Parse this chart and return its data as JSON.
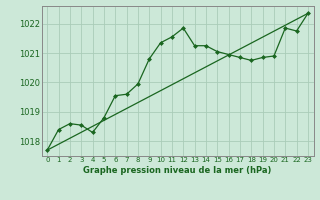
{
  "title": "Graphe pression niveau de la mer (hPa)",
  "bg_color": "#cce8d8",
  "grid_color": "#aaccb8",
  "line_color": "#1a6620",
  "spine_color": "#888888",
  "y_ticks": [
    1018,
    1019,
    1020,
    1021,
    1022
  ],
  "ylim": [
    1017.5,
    1022.6
  ],
  "xlim": [
    -0.5,
    23.5
  ],
  "x_labels": [
    "0",
    "1",
    "2",
    "3",
    "4",
    "5",
    "6",
    "7",
    "8",
    "9",
    "10",
    "11",
    "12",
    "13",
    "14",
    "15",
    "16",
    "17",
    "18",
    "19",
    "20",
    "21",
    "22",
    "23"
  ],
  "series1_x": [
    0,
    1,
    2,
    3,
    4,
    5,
    6,
    7,
    8,
    9,
    10,
    11,
    12,
    13,
    14,
    15,
    16,
    17,
    18,
    19,
    20,
    21,
    22,
    23
  ],
  "series1_y": [
    1017.7,
    1018.4,
    1018.6,
    1018.55,
    1018.3,
    1018.8,
    1019.55,
    1019.6,
    1019.95,
    1020.8,
    1021.35,
    1021.55,
    1021.85,
    1021.25,
    1021.25,
    1021.05,
    1020.95,
    1020.85,
    1020.75,
    1020.85,
    1020.9,
    1021.85,
    1021.75,
    1022.35
  ],
  "trend_x": [
    0,
    23
  ],
  "trend_y": [
    1017.7,
    1022.35
  ],
  "ylabel_fontsize": 6,
  "xlabel_fontsize": 6,
  "tick_fontsize": 5,
  "linewidth": 0.9,
  "markersize": 2.5
}
